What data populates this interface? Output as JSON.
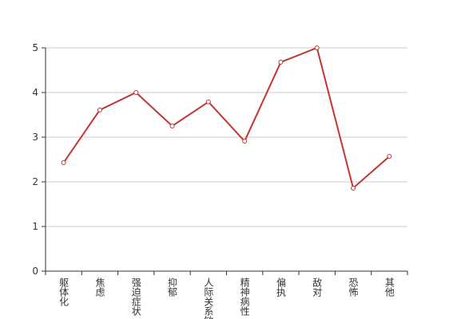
{
  "chart_data": {
    "type": "line",
    "categories": [
      "躯体化",
      "焦虑",
      "强迫症状",
      "抑郁",
      "人际关系敏感",
      "精神病性",
      "偏执",
      "敌对",
      "恐怖",
      "其他"
    ],
    "series": [
      {
        "color": "#c23531",
        "values": [
          2.43,
          3.61,
          4.0,
          3.25,
          3.79,
          2.91,
          4.68,
          5.0,
          1.86,
          2.57
        ]
      }
    ],
    "ylim": [
      0,
      5
    ],
    "yticks": [
      0,
      1,
      2,
      3,
      4,
      5
    ],
    "grid": true
  }
}
